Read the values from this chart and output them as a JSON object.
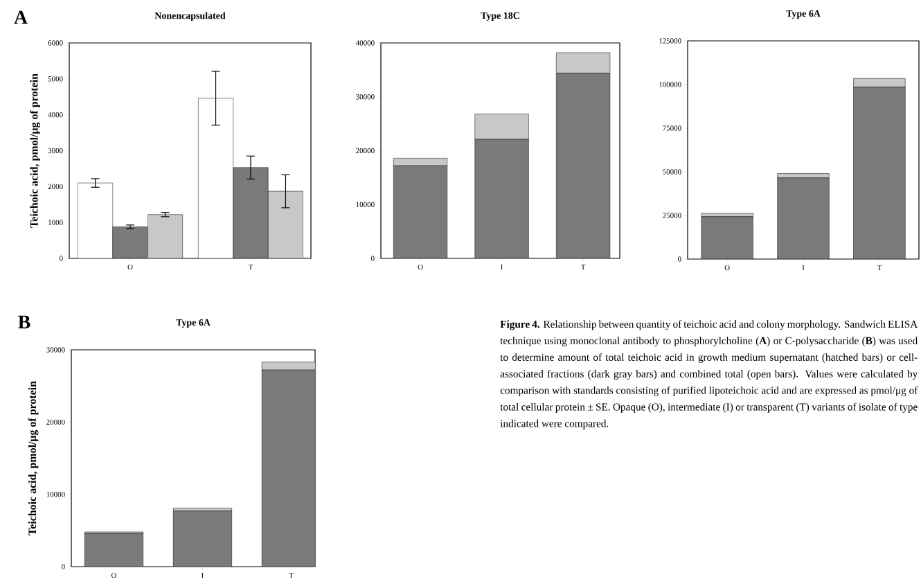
{
  "chart_data": [
    {
      "type": "bar",
      "title": "Nonencapsulated",
      "ylabel": "Teichoic acid, pmol/μg of protein",
      "categories": [
        "O",
        "T"
      ],
      "series": [
        {
          "color": "#ffffff",
          "values": [
            2100,
            4460
          ],
          "errors": [
            120,
            750
          ]
        },
        {
          "color": "#7a7a7a",
          "values": [
            880,
            2530
          ],
          "errors": [
            50,
            320
          ]
        },
        {
          "color": "#c8c8c8",
          "values": [
            1220,
            1870
          ],
          "errors": [
            60,
            460
          ]
        }
      ],
      "ylim": [
        0,
        6000
      ],
      "yticks": [
        0,
        1000,
        2000,
        3000,
        4000,
        5000,
        6000
      ],
      "annotations": [
        "A"
      ]
    },
    {
      "type": "bar",
      "stacked": true,
      "title": "Type 18C",
      "categories": [
        "O",
        "I",
        "T"
      ],
      "series": [
        {
          "color": "#7a7a7a",
          "values": [
            17200,
            22100,
            34400
          ]
        },
        {
          "color": "#c8c8c8",
          "values": [
            1400,
            4700,
            3800
          ]
        }
      ],
      "ylim": [
        0,
        40000
      ],
      "yticks": [
        0,
        10000,
        20000,
        30000,
        40000
      ]
    },
    {
      "type": "bar",
      "stacked": true,
      "title": "Type 6A",
      "categories": [
        "O",
        "I",
        "T"
      ],
      "series": [
        {
          "color": "#7a7a7a",
          "values": [
            24300,
            46500,
            98500
          ]
        },
        {
          "color": "#c8c8c8",
          "values": [
            1900,
            2500,
            5000
          ]
        }
      ],
      "ylim": [
        0,
        125000
      ],
      "yticks": [
        0,
        25000,
        50000,
        75000,
        100000,
        125000
      ]
    },
    {
      "type": "bar",
      "stacked": true,
      "title": "Type 6A",
      "ylabel": "Teichoic acid, pmol/μg of protein",
      "categories": [
        "O",
        "I",
        "T"
      ],
      "series": [
        {
          "color": "#7a7a7a",
          "values": [
            4600,
            7700,
            27200
          ]
        },
        {
          "color": "#c8c8c8",
          "values": [
            200,
            400,
            1100
          ]
        }
      ],
      "ylim": [
        0,
        30000
      ],
      "yticks": [
        0,
        10000,
        20000,
        30000
      ],
      "annotations": [
        "B",
        "**Figure 4.** Relationship between quantity of teichoic acid and colony morphology. Sandwich ELISA technique using monoclonal antibody to phosphorylcholine (**A**) or C-polysaccharide (**B**) was used to determine amount of total teichoic acid in growth medium supernatant (hatched bars) or cell-associated fractions (dark gray bars) and combined total (open bars). Values were calculated by comparison with standards consisting of purified lipoteichoic acid and are expressed as pmol/μg of total cellular protein ± SE. Opaque (O), intermediate (I) or transparent (T) variants of isolate of type indicated were compared."
      ]
    }
  ]
}
